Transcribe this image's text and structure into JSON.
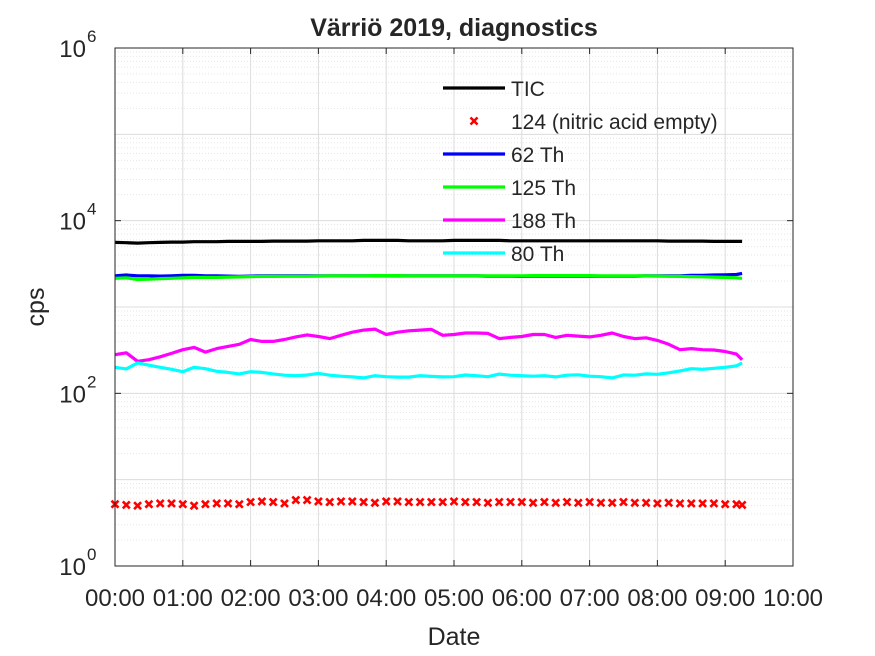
{
  "chart_data": {
    "type": "line",
    "title": "Värriö 2019, diagnostics",
    "xlabel": "Date",
    "ylabel": "cps",
    "yscale": "log",
    "xlim": [
      "00:00",
      "10:00"
    ],
    "ylim": [
      1,
      1000000
    ],
    "grid": true,
    "minor_grid": true,
    "legend_position": "top-right",
    "x_ticks": [
      "00:00",
      "01:00",
      "02:00",
      "03:00",
      "04:00",
      "05:00",
      "06:00",
      "07:00",
      "08:00",
      "09:00",
      "10:00"
    ],
    "y_ticks": [
      {
        "base": "10",
        "exp": "0"
      },
      {
        "base": "10",
        "exp": "2"
      },
      {
        "base": "10",
        "exp": "4"
      },
      {
        "base": "10",
        "exp": "6"
      }
    ],
    "x": [
      "00:00",
      "00:10",
      "00:20",
      "00:30",
      "00:40",
      "00:50",
      "01:00",
      "01:10",
      "01:20",
      "01:30",
      "01:40",
      "01:50",
      "02:00",
      "02:10",
      "02:20",
      "02:30",
      "02:40",
      "02:50",
      "03:00",
      "03:10",
      "03:20",
      "03:30",
      "03:40",
      "03:50",
      "04:00",
      "04:10",
      "04:20",
      "04:30",
      "04:40",
      "04:50",
      "05:00",
      "05:10",
      "05:20",
      "05:30",
      "05:40",
      "05:50",
      "06:00",
      "06:10",
      "06:20",
      "06:30",
      "06:40",
      "06:50",
      "07:00",
      "07:10",
      "07:20",
      "07:30",
      "07:40",
      "07:50",
      "08:00",
      "08:10",
      "08:20",
      "08:30",
      "08:40",
      "08:50",
      "09:00",
      "09:10",
      "09:15"
    ],
    "series": [
      {
        "name": "TIC",
        "color": "#000000",
        "style": "line",
        "values": [
          5600,
          5550,
          5500,
          5550,
          5600,
          5650,
          5650,
          5700,
          5700,
          5700,
          5750,
          5750,
          5750,
          5750,
          5800,
          5800,
          5800,
          5800,
          5850,
          5850,
          5850,
          5850,
          5900,
          5900,
          5900,
          5900,
          5850,
          5850,
          5850,
          5850,
          5900,
          5900,
          5900,
          5900,
          5900,
          5850,
          5850,
          5850,
          5850,
          5850,
          5850,
          5850,
          5850,
          5850,
          5850,
          5850,
          5850,
          5850,
          5850,
          5800,
          5800,
          5800,
          5800,
          5750,
          5750,
          5750,
          5750
        ]
      },
      {
        "name": "124 (nitric acid empty)",
        "color": "#ff0000",
        "style": "marker-x",
        "values": [
          5.2,
          5.1,
          5.0,
          5.2,
          5.3,
          5.3,
          5.2,
          5.0,
          5.2,
          5.3,
          5.3,
          5.2,
          5.5,
          5.6,
          5.5,
          5.3,
          5.8,
          5.8,
          5.6,
          5.5,
          5.6,
          5.6,
          5.5,
          5.4,
          5.6,
          5.6,
          5.5,
          5.5,
          5.5,
          5.5,
          5.6,
          5.5,
          5.5,
          5.4,
          5.5,
          5.5,
          5.5,
          5.4,
          5.5,
          5.4,
          5.5,
          5.4,
          5.5,
          5.4,
          5.4,
          5.5,
          5.4,
          5.4,
          5.3,
          5.4,
          5.3,
          5.3,
          5.3,
          5.3,
          5.2,
          5.2,
          5.1
        ]
      },
      {
        "name": "62 Th",
        "color": "#0000ff",
        "style": "line",
        "values": [
          2300,
          2350,
          2300,
          2300,
          2280,
          2300,
          2330,
          2330,
          2300,
          2300,
          2280,
          2270,
          2280,
          2300,
          2300,
          2300,
          2300,
          2300,
          2290,
          2290,
          2300,
          2300,
          2300,
          2300,
          2300,
          2290,
          2290,
          2290,
          2290,
          2290,
          2290,
          2290,
          2290,
          2280,
          2280,
          2280,
          2270,
          2280,
          2280,
          2280,
          2280,
          2280,
          2280,
          2280,
          2280,
          2280,
          2280,
          2290,
          2300,
          2300,
          2300,
          2320,
          2330,
          2350,
          2360,
          2380,
          2450
        ]
      },
      {
        "name": "125 Th",
        "color": "#00ff00",
        "style": "line",
        "values": [
          2150,
          2180,
          2080,
          2100,
          2130,
          2150,
          2180,
          2200,
          2200,
          2200,
          2220,
          2230,
          2250,
          2260,
          2260,
          2270,
          2270,
          2270,
          2280,
          2290,
          2290,
          2300,
          2300,
          2310,
          2310,
          2310,
          2300,
          2300,
          2300,
          2300,
          2300,
          2300,
          2300,
          2300,
          2300,
          2300,
          2300,
          2310,
          2310,
          2310,
          2310,
          2310,
          2310,
          2300,
          2300,
          2300,
          2300,
          2290,
          2280,
          2270,
          2260,
          2250,
          2240,
          2220,
          2200,
          2180,
          2150
        ]
      },
      {
        "name": "188 Th",
        "color": "#ff00ff",
        "style": "line",
        "values": [
          280,
          295,
          235,
          245,
          265,
          290,
          320,
          340,
          300,
          330,
          350,
          370,
          420,
          400,
          400,
          420,
          450,
          475,
          455,
          430,
          470,
          510,
          540,
          555,
          480,
          510,
          530,
          540,
          550,
          470,
          480,
          500,
          500,
          495,
          430,
          445,
          455,
          480,
          480,
          445,
          470,
          460,
          450,
          470,
          500,
          455,
          430,
          440,
          410,
          370,
          320,
          330,
          320,
          318,
          305,
          285,
          245
        ]
      },
      {
        "name": "80 Th",
        "color": "#00ffff",
        "style": "line",
        "values": [
          200,
          192,
          225,
          212,
          200,
          190,
          178,
          200,
          193,
          180,
          175,
          168,
          178,
          175,
          168,
          162,
          160,
          163,
          170,
          162,
          158,
          155,
          151,
          160,
          156,
          154,
          154,
          160,
          157,
          155,
          156,
          163,
          160,
          156,
          167,
          162,
          160,
          158,
          160,
          155,
          162,
          164,
          158,
          156,
          151,
          163,
          162,
          168,
          166,
          173,
          182,
          193,
          190,
          195,
          200,
          208,
          225
        ]
      }
    ]
  }
}
